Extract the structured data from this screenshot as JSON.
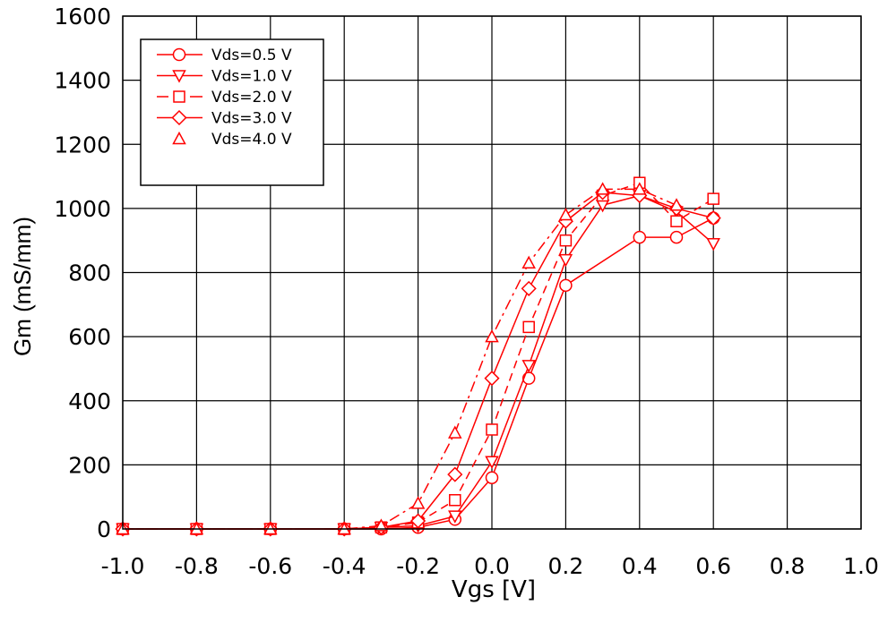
{
  "chart_data": {
    "type": "line",
    "title": "",
    "xlabel": "Vgs [V]",
    "ylabel": "Gm (mS/mm)",
    "xlim": [
      -1.0,
      1.0
    ],
    "ylim": [
      0,
      1600
    ],
    "x_ticks": [
      "-1.0",
      "-0.8",
      "-0.6",
      "-0.4",
      "-0.2",
      "0.0",
      "0.2",
      "0.4",
      "0.6",
      "0.8",
      "1.0"
    ],
    "y_ticks": [
      "0",
      "200",
      "400",
      "600",
      "800",
      "1000",
      "1200",
      "1400",
      "1600"
    ],
    "grid": true,
    "legend_position": "top-left",
    "line_color": "#ff0000",
    "series": [
      {
        "name": "Vds=0.5 V",
        "marker": "circle",
        "dash": "solid",
        "x": [
          -1.0,
          -0.8,
          -0.6,
          -0.4,
          -0.3,
          -0.2,
          -0.1,
          0.0,
          0.1,
          0.2,
          0.4,
          0.5,
          0.6
        ],
        "y": [
          0,
          0,
          0,
          0,
          0,
          5,
          30,
          160,
          470,
          760,
          910,
          910,
          970
        ]
      },
      {
        "name": "Vds=1.0 V",
        "marker": "triangle-down",
        "dash": "solid",
        "x": [
          -1.0,
          -0.8,
          -0.6,
          -0.4,
          -0.3,
          -0.2,
          -0.1,
          0.0,
          0.1,
          0.2,
          0.3,
          0.4,
          0.5,
          0.6
        ],
        "y": [
          0,
          0,
          0,
          0,
          5,
          10,
          40,
          210,
          510,
          840,
          1010,
          1040,
          990,
          890
        ]
      },
      {
        "name": "Vds=2.0 V",
        "marker": "square",
        "dash": "dash",
        "x": [
          -1.0,
          -0.8,
          -0.6,
          -0.4,
          -0.3,
          -0.2,
          -0.1,
          0.0,
          0.1,
          0.2,
          0.3,
          0.4,
          0.5,
          0.6
        ],
        "y": [
          0,
          0,
          0,
          0,
          5,
          20,
          90,
          310,
          630,
          900,
          1040,
          1080,
          960,
          1030
        ]
      },
      {
        "name": "Vds=3.0 V",
        "marker": "diamond",
        "dash": "solid",
        "x": [
          -1.0,
          -0.8,
          -0.6,
          -0.4,
          -0.3,
          -0.2,
          -0.1,
          0.0,
          0.1,
          0.2,
          0.3,
          0.4,
          0.5,
          0.6
        ],
        "y": [
          0,
          0,
          0,
          0,
          5,
          25,
          170,
          470,
          750,
          960,
          1050,
          1040,
          1000,
          970
        ]
      },
      {
        "name": "Vds=4.0 V",
        "marker": "triangle-up",
        "dash": "dashdot",
        "x": [
          -1.0,
          -0.8,
          -0.6,
          -0.4,
          -0.3,
          -0.2,
          -0.1,
          0.0,
          0.1,
          0.2,
          0.3,
          0.4,
          0.5
        ],
        "y": [
          0,
          0,
          0,
          0,
          10,
          80,
          300,
          600,
          830,
          980,
          1060,
          1060,
          1010
        ]
      }
    ]
  }
}
